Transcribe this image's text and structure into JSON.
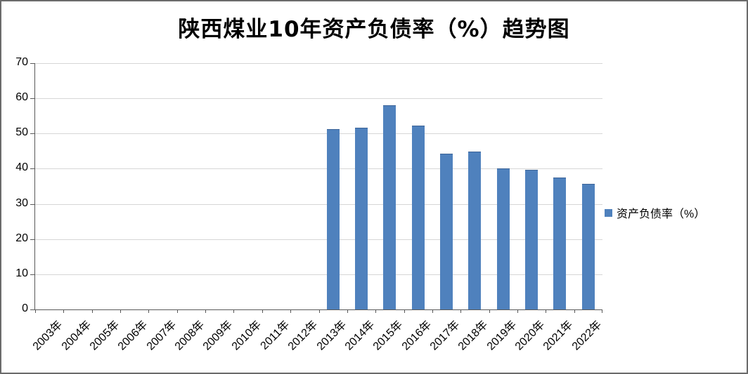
{
  "title": "陕西煤业10年资产负债率（%）趋势图",
  "legend": {
    "label": "资产负债率（%）",
    "swatch_color": "#4f81bd"
  },
  "chart_data": {
    "type": "bar",
    "title": "陕西煤业10年资产负债率（%）趋势图",
    "categories": [
      "2003年",
      "2004年",
      "2005年",
      "2006年",
      "2007年",
      "2008年",
      "2009年",
      "2010年",
      "2011年",
      "2012年",
      "2013年",
      "2014年",
      "2015年",
      "2016年",
      "2017年",
      "2018年",
      "2019年",
      "2020年",
      "2021年",
      "2022年"
    ],
    "values": [
      null,
      null,
      null,
      null,
      null,
      null,
      null,
      null,
      null,
      null,
      51.2,
      51.6,
      58.1,
      52.2,
      44.2,
      44.9,
      40.0,
      39.7,
      37.4,
      35.8
    ],
    "xlabel": "",
    "ylabel": "",
    "ylim": [
      0,
      70
    ],
    "ytick_interval": 10,
    "yticks": [
      0,
      10,
      20,
      30,
      40,
      50,
      60,
      70
    ],
    "grid": true,
    "bar_color": "#4f81bd",
    "bar_border_color": "#3c6497",
    "legend_entries": [
      "资产负债率（%）"
    ],
    "legend_position": "right"
  }
}
